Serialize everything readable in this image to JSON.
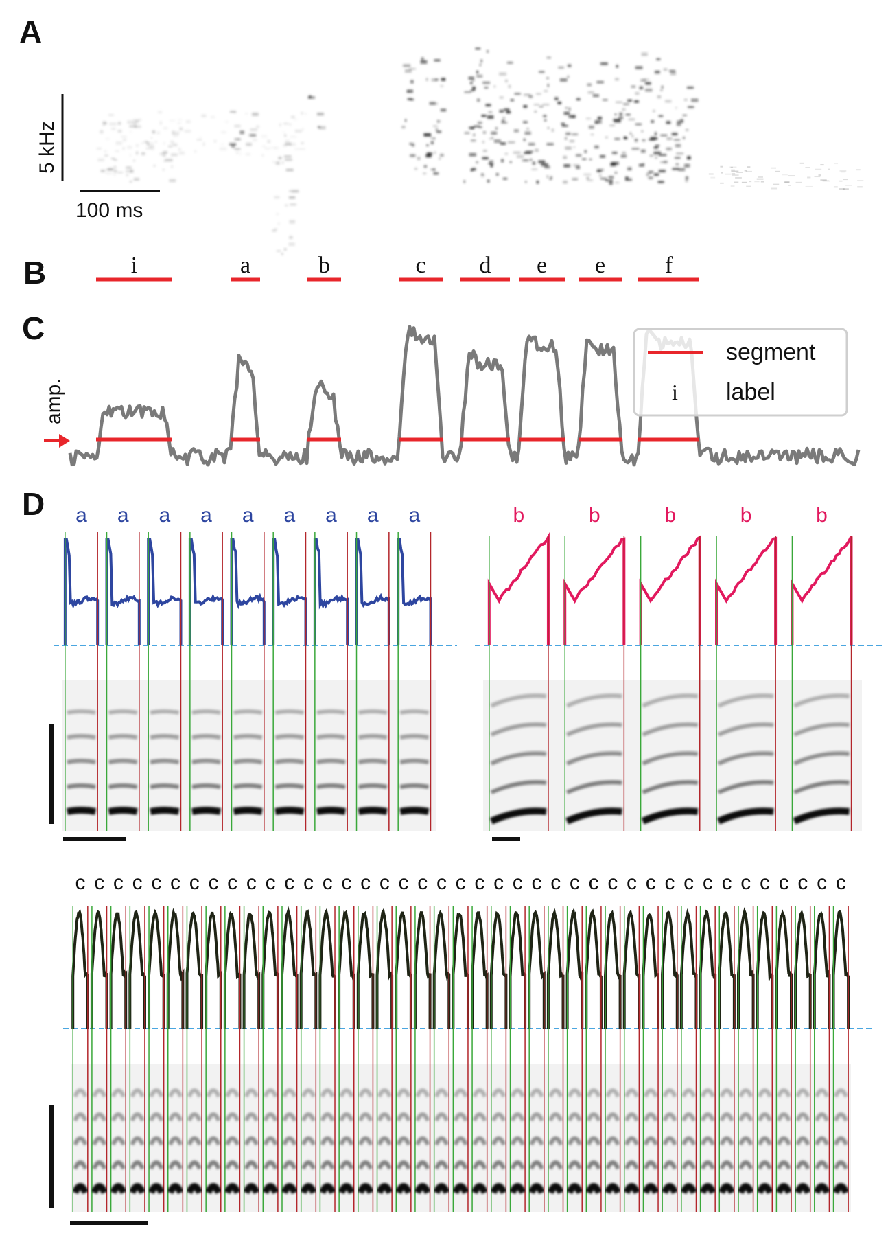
{
  "panels": {
    "A": {
      "letter": "A",
      "freq_scale_label": "5 kHz",
      "time_scale_label": "100 ms"
    },
    "B": {
      "letter": "B",
      "segments": [
        {
          "label": "i"
        },
        {
          "label": "a"
        },
        {
          "label": "b"
        },
        {
          "label": "c"
        },
        {
          "label": "d"
        },
        {
          "label": "e"
        },
        {
          "label": "e"
        },
        {
          "label": "f"
        }
      ]
    },
    "C": {
      "letter": "C",
      "ylabel": "amp.",
      "legend": {
        "segment_label": "segment",
        "label_text": "label",
        "label_symbol": "i"
      }
    },
    "D": {
      "letter": "D",
      "left_group_labels": [
        "a",
        "a",
        "a",
        "a",
        "a",
        "a",
        "a",
        "a",
        "a"
      ],
      "right_group_labels": [
        "b",
        "b",
        "b",
        "b",
        "b"
      ],
      "bottom_group_labels": [
        "c",
        "c",
        "c",
        "c",
        "c",
        "c",
        "c",
        "c",
        "c",
        "c",
        "c",
        "c",
        "c",
        "c",
        "c",
        "c",
        "c",
        "c",
        "c",
        "c",
        "c",
        "c",
        "c",
        "c",
        "c",
        "c",
        "c",
        "c",
        "c",
        "c",
        "c",
        "c",
        "c",
        "c",
        "c",
        "c",
        "c",
        "c",
        "c",
        "c",
        "c"
      ]
    }
  },
  "colors": {
    "segment_red": "#e8262b",
    "trace_gray": "#7a7a7a",
    "trace_blue": "#2e46a0",
    "trace_pink": "#e2195e",
    "trace_dark": "#1f2415",
    "onset_green": "#3aa83a",
    "offset_red": "#b3262b",
    "threshold_blue": "#4aa6e0"
  }
}
